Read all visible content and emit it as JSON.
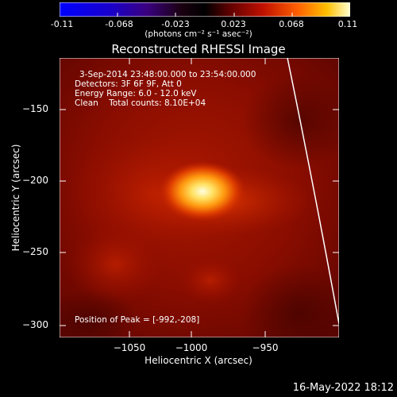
{
  "colorbar": {
    "ticks": [
      "-0.11",
      "-0.068",
      "-0.023",
      "0.023",
      "0.068",
      "0.11"
    ],
    "units": "(photons cm⁻² s⁻¹ asec⁻²)"
  },
  "title": "Reconstructed RHESSI Image",
  "info": {
    "line1": "3-Sep-2014 23:48:00.000 to 23:54:00.000",
    "line2": "Detectors: 3F 6F 9F, Att 0",
    "line3": "Energy Range: 6.0 - 12.0 keV",
    "line4": "Clean    Total counts: 8.10E+04"
  },
  "peak_label": "Position of Peak = [-992,-208]",
  "x_axis": {
    "label": "Heliocentric X (arcsec)",
    "ticks": [
      "−1050",
      "−1000",
      "−950"
    ]
  },
  "y_axis": {
    "label": "Heliocentric Y (arcsec)",
    "ticks": [
      "−150",
      "−200",
      "−250",
      "−300"
    ]
  },
  "footer_date": "16-May-2022 18:12"
}
